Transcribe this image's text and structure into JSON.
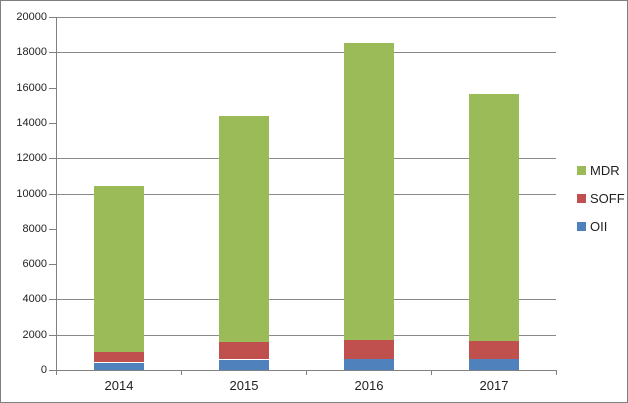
{
  "chart_data": {
    "type": "bar",
    "stacked": true,
    "title": "",
    "xlabel": "",
    "ylabel": "",
    "categories": [
      "2014",
      "2015",
      "2016",
      "2017"
    ],
    "series": [
      {
        "name": "OII",
        "color": "#4F81BD",
        "values": [
          400,
          580,
          600,
          600
        ]
      },
      {
        "name": "SOFF",
        "color": "#C0504D",
        "values": [
          650,
          990,
          1140,
          1080
        ]
      },
      {
        "name": "MDR",
        "color": "#9BBB59",
        "values": [
          9400,
          12830,
          16810,
          13970
        ]
      }
    ],
    "stack_totals": [
      10450,
      14400,
      18550,
      15650
    ],
    "ylim": [
      0,
      20000
    ],
    "y_tick_step": 2000,
    "y_ticks": [
      0,
      2000,
      4000,
      6000,
      8000,
      10000,
      12000,
      14000,
      16000,
      18000,
      20000
    ],
    "visible_gridline_values": [
      2000,
      4000,
      10000,
      12000,
      18000,
      20000
    ],
    "grid": "horizontal",
    "legend_position": "right",
    "legend": [
      {
        "label": "MDR",
        "color": "#9BBB59"
      },
      {
        "label": "SOFF",
        "color": "#C0504D"
      },
      {
        "label": "OII",
        "color": "#4F81BD"
      }
    ]
  },
  "style": {
    "axis_color": "#808080",
    "gridline_color": "#898989",
    "text_color": "#1f1f1f",
    "frame_border_color": "#7f7f7f",
    "background": "#ffffff"
  }
}
